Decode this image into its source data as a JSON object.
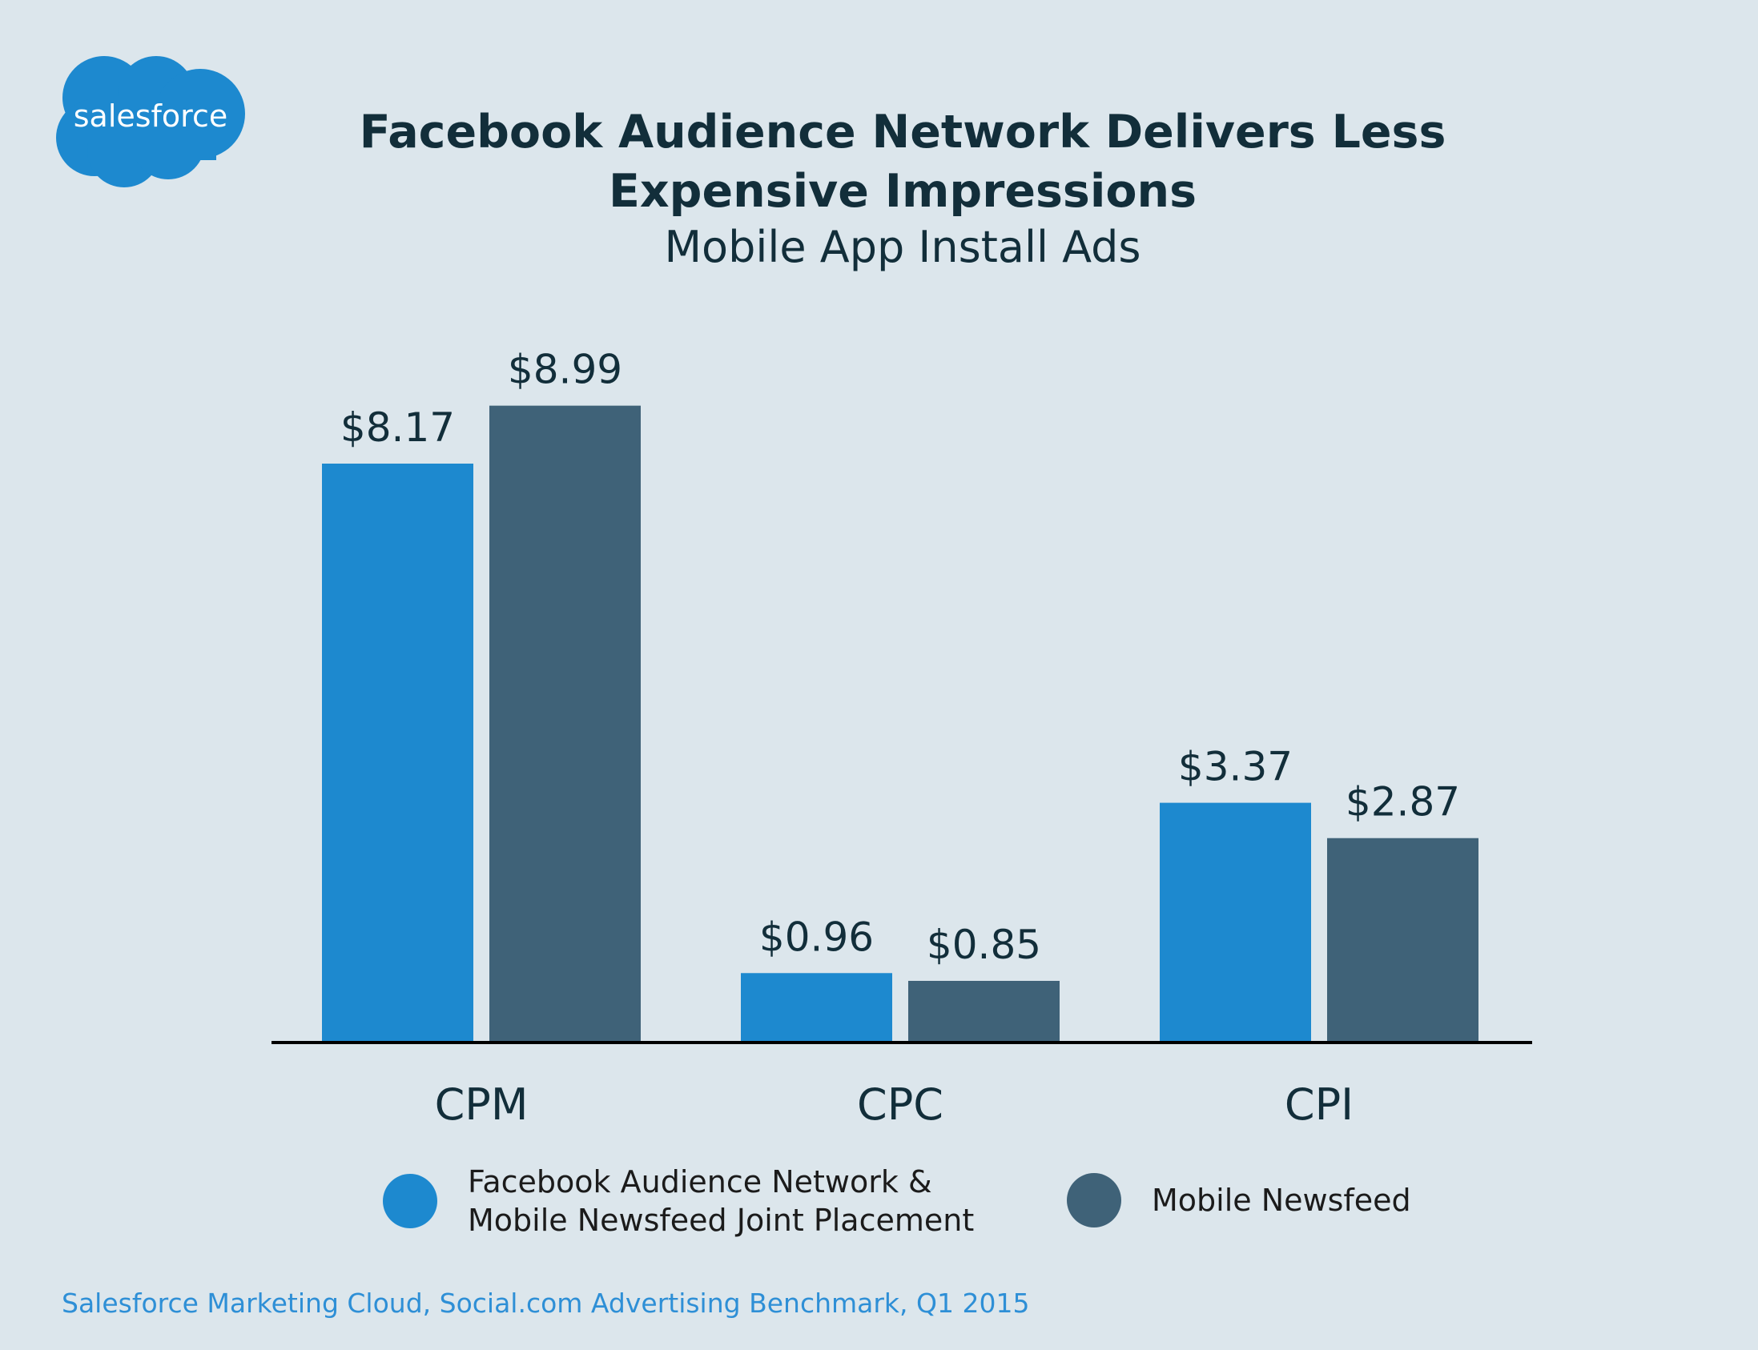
{
  "logo": {
    "text": "salesforce",
    "color": "#1D89CF"
  },
  "header": {
    "title_line1": "Facebook Audience Network Delivers Less",
    "title_line2": "Expensive Impressions",
    "subtitle": "Mobile App Install Ads"
  },
  "chart_data": {
    "type": "bar",
    "title": "Facebook Audience Network Delivers Less Expensive Impressions",
    "subtitle": "Mobile App Install Ads",
    "categories": [
      "CPM",
      "CPC",
      "CPI"
    ],
    "series": [
      {
        "name": "Facebook Audience Network & Mobile Newsfeed Joint Placement",
        "color": "#1D89CF",
        "values": [
          8.17,
          0.96,
          3.37
        ],
        "labels": [
          "$8.17",
          "$0.96",
          "$3.37"
        ]
      },
      {
        "name": "Mobile Newsfeed",
        "color": "#3F6278",
        "values": [
          8.99,
          0.85,
          2.87
        ],
        "labels": [
          "$8.99",
          "$0.85",
          "$2.87"
        ]
      }
    ],
    "xlabel": "",
    "ylabel": "",
    "ylim": [
      0,
      10
    ],
    "grid": false,
    "legend": "bottom"
  },
  "legend": {
    "item1_line1": "Facebook Audience Network &",
    "item1_line2": "Mobile Newsfeed Joint Placement",
    "item2": "Mobile Newsfeed"
  },
  "footer": {
    "source": "Salesforce Marketing Cloud, Social.com Advertising Benchmark, Q1 2015"
  }
}
